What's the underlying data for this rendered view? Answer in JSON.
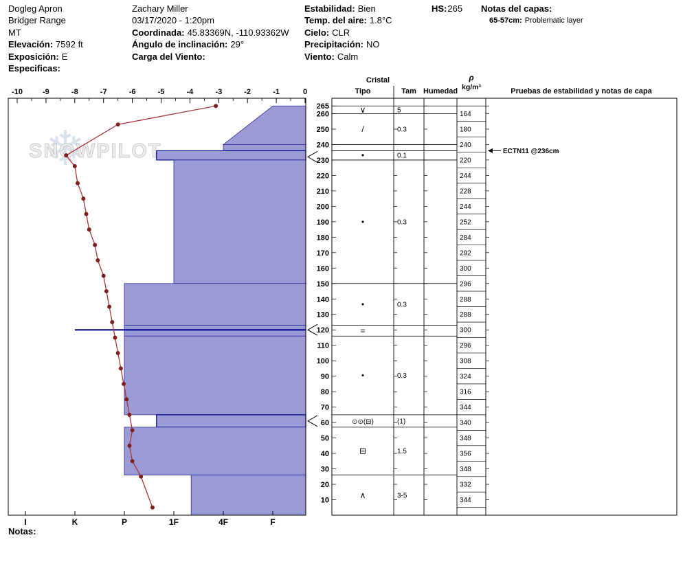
{
  "header": {
    "col1": {
      "site_name": "Dogleg Apron",
      "region": "Bridger Range",
      "state": "MT",
      "elevation_label": "Elevación:",
      "elevation_value": "7592 ft",
      "aspect_label": "Exposición:",
      "aspect_value": "E",
      "specifics_label": "Especificas:"
    },
    "col2": {
      "observer": "Zachary Miller",
      "datetime": "03/17/2020 - 1:20pm",
      "coordinates_label": "Coordinada:",
      "coordinates_value": "45.83369N, -110.93362W",
      "slope_angle_label": "Ángulo de inclinación:",
      "slope_angle_value": "29°",
      "wind_loading_label": "Carga del Viento:"
    },
    "col3": {
      "stability_label": "Estabilidad:",
      "stability_value": "Bien",
      "air_temp_label": "Temp. del aire:",
      "air_temp_value": "1.8°C",
      "sky_label": "Cielo:",
      "sky_value": "CLR",
      "precip_label": "Precipitación:",
      "precip_value": "NO",
      "wind_label": "Viento:",
      "wind_value": "Calm"
    },
    "col4": {
      "hs_label": "HS:",
      "hs_value": "265"
    },
    "col5": {
      "layer_notes_label": "Notas del capas:",
      "note_range": "65-57cm:",
      "note_text": "Problematic layer"
    }
  },
  "footer": {
    "notes_label": "Notas:"
  },
  "watermark": {
    "text": "SNOWPILOT",
    "snowflake_icon": "❄"
  },
  "chart_data": [
    {
      "type": "line",
      "name": "temperature-profile",
      "x_ticks": [
        -10,
        -9,
        -8,
        -7,
        -6,
        -5,
        -4,
        -3,
        -2,
        -1,
        0
      ],
      "xlim": [
        -10,
        0
      ],
      "ylim": [
        0,
        265
      ],
      "line_color": "#a93434",
      "point_color": "#7e2020",
      "points": [
        [
          -3.1,
          265
        ],
        [
          -6.5,
          253
        ],
        [
          -8.3,
          233
        ],
        [
          -8.0,
          226
        ],
        [
          -7.9,
          215
        ],
        [
          -7.7,
          205
        ],
        [
          -7.6,
          195
        ],
        [
          -7.5,
          185
        ],
        [
          -7.3,
          175
        ],
        [
          -7.2,
          165
        ],
        [
          -7.0,
          155
        ],
        [
          -6.9,
          145
        ],
        [
          -6.8,
          135
        ],
        [
          -6.7,
          125
        ],
        [
          -6.6,
          115
        ],
        [
          -6.5,
          105
        ],
        [
          -6.4,
          95
        ],
        [
          -6.3,
          85
        ],
        [
          -6.2,
          75
        ],
        [
          -6.1,
          65
        ],
        [
          -6.0,
          55
        ],
        [
          -6.1,
          45
        ],
        [
          -6.0,
          35
        ],
        [
          -5.7,
          25
        ],
        [
          -5.3,
          5
        ]
      ]
    },
    {
      "type": "area",
      "name": "hardness-profile",
      "x_ticks": [
        "I",
        "K",
        "P",
        "1F",
        "4F",
        "F"
      ],
      "ylim": [
        0,
        270
      ],
      "fill_color": "#9a9ad4",
      "line_color": "#2a2aa0",
      "flag_color": "#00008c",
      "layers": [
        {
          "top": 265,
          "bottom": 240,
          "hardness_top": "F",
          "hardness_bottom": "4F",
          "flag": false
        },
        {
          "top": 240,
          "bottom": 236,
          "hardness_top": "4F",
          "hardness_bottom": "4F",
          "flag": false
        },
        {
          "top": 236,
          "bottom": 230,
          "hardness_top": "1F+",
          "hardness_bottom": "1F+",
          "flag": true
        },
        {
          "top": 230,
          "bottom": 150,
          "hardness_top": "1F",
          "hardness_bottom": "1F",
          "flag": false
        },
        {
          "top": 150,
          "bottom": 123,
          "hardness_top": "P",
          "hardness_bottom": "P",
          "flag": false
        },
        {
          "top": 123,
          "bottom": 116,
          "hardness_top": "P",
          "hardness_bottom": "P",
          "flag": false
        },
        {
          "top": 116,
          "bottom": 65,
          "hardness_top": "P",
          "hardness_bottom": "P",
          "flag": false
        },
        {
          "top": 65,
          "bottom": 57,
          "hardness_top": "1F+",
          "hardness_bottom": "1F+",
          "flag": true
        },
        {
          "top": 57,
          "bottom": 26,
          "hardness_top": "P",
          "hardness_bottom": "P",
          "flag": false
        },
        {
          "top": 26,
          "bottom": 0,
          "hardness_top": "1F-",
          "hardness_bottom": "1F-",
          "flag": false
        }
      ],
      "thin_layers": [
        {
          "depth": 120,
          "hardness": "K"
        }
      ]
    },
    {
      "type": "table",
      "name": "layer-table",
      "headers": {
        "cristal": "Cristal",
        "tipo": "Tipo",
        "tam": "Tam",
        "humedad": "Humedad",
        "rho": "ρ",
        "rho_units": "kg/m³",
        "tests": "Pruebas de estabilidad y notas de capa"
      },
      "depth_ticks": [
        265,
        260,
        250,
        240,
        230,
        220,
        210,
        200,
        190,
        180,
        170,
        160,
        150,
        140,
        130,
        120,
        110,
        100,
        90,
        80,
        70,
        60,
        50,
        40,
        30,
        20,
        10
      ],
      "rows": [
        {
          "top": 265,
          "bottom": 260,
          "crystal": "∨",
          "size": "5"
        },
        {
          "top": 260,
          "bottom": 240,
          "crystal": "/",
          "size": "0.3"
        },
        {
          "top": 240,
          "bottom": 236,
          "crystal": "",
          "size": ""
        },
        {
          "top": 236,
          "bottom": 230,
          "crystal": "•",
          "size": "0.1"
        },
        {
          "top": 230,
          "bottom": 150,
          "crystal": "•",
          "size": "0.3"
        },
        {
          "top": 150,
          "bottom": 123,
          "crystal": "•",
          "size": "0.3"
        },
        {
          "top": 123,
          "bottom": 116,
          "crystal": "=",
          "size": ""
        },
        {
          "top": 116,
          "bottom": 65,
          "crystal": "•",
          "size": "0.3"
        },
        {
          "top": 65,
          "bottom": 57,
          "crystal": "⊙⊙(⊟)",
          "size": "(1)"
        },
        {
          "top": 57,
          "bottom": 26,
          "crystal": "⊟",
          "size": "1.5"
        },
        {
          "top": 26,
          "bottom": 0,
          "crystal": "∧",
          "size": "3-5"
        }
      ],
      "density": {
        "depths": [
          260,
          250,
          240,
          230,
          220,
          210,
          200,
          190,
          180,
          170,
          160,
          150,
          140,
          130,
          120,
          110,
          100,
          90,
          80,
          70,
          60,
          50,
          40,
          30,
          20,
          10
        ],
        "values": [
          164,
          180,
          240,
          220,
          244,
          228,
          244,
          252,
          284,
          292,
          300,
          296,
          288,
          288,
          300,
          296,
          308,
          324,
          316,
          344,
          340,
          348,
          356,
          348,
          332,
          344
        ]
      },
      "tests": [
        {
          "depth": 236,
          "label": "ECTN11 @236cm"
        }
      ],
      "marked_depths": [
        232,
        120,
        61
      ]
    }
  ]
}
